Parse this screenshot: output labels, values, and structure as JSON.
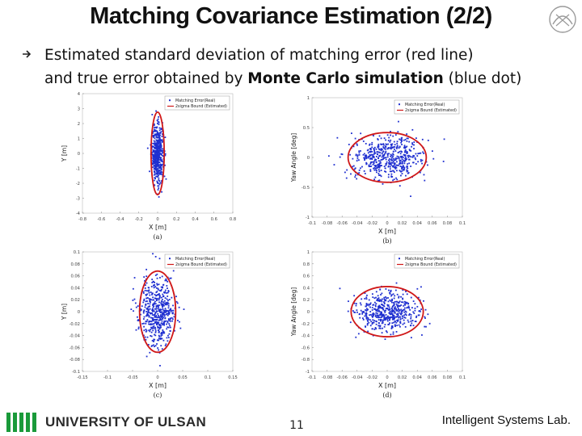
{
  "title": "Matching Covariance Estimation (2/2)",
  "bullet_line1": "Estimated standard deviation of matching error (red line)",
  "bullet_line2_pre": "and true error obtained by ",
  "bullet_line2_bold": "Monte Carlo simulation",
  "bullet_line2_post": " (blue dot)",
  "footer": {
    "university": "UNIVERSITY OF ULSAN",
    "page": "11",
    "lab": "Intelligent Systems Lab."
  },
  "colors": {
    "points": "#1f2fd0",
    "ellipse": "#d01818",
    "logo_green": "#1a9a3a"
  },
  "chart_data": [
    {
      "type": "scatter",
      "panel": "(a)",
      "xlabel": "X [m]",
      "ylabel": "Y [m]",
      "xlim": [
        -0.8,
        0.8
      ],
      "ylim": [
        -4.2,
        4.2
      ],
      "xticks": [
        "-0.8",
        "-0.6",
        "-0.4",
        "-0.2",
        "0",
        "0.2",
        "0.4",
        "0.6",
        "0.8"
      ],
      "yticks": [
        "4",
        "3",
        "2",
        "1",
        "0",
        "-1",
        "-2",
        "-3",
        "-4"
      ],
      "legend": [
        "Matching Error(Real)",
        "2sigma Bound (Estimated)"
      ],
      "legend_position": "top-right",
      "spread": [
        0.03,
        1.0
      ],
      "ellipse": [
        0.07,
        2.9
      ]
    },
    {
      "type": "scatter",
      "panel": "(b)",
      "xlabel": "X [m]",
      "ylabel": "Yaw Angle [deg]",
      "xlim": [
        -0.1,
        0.1
      ],
      "ylim": [
        -1.2,
        1.2
      ],
      "xticks": [
        "-0.1",
        "-0.08",
        "-0.06",
        "-0.04",
        "-0.02",
        "0",
        "0.02",
        "0.04",
        "0.06",
        "0.08",
        "0.1"
      ],
      "yticks": [
        "1",
        "0.5",
        "0",
        "-0.5",
        "-1"
      ],
      "legend": [
        "Matching Error(Real)",
        "2sigma Bound (Estimated)"
      ],
      "legend_position": "top-right",
      "spread": [
        0.025,
        0.22
      ],
      "ellipse": [
        0.052,
        0.5
      ]
    },
    {
      "type": "scatter",
      "panel": "(c)",
      "xlabel": "X [m]",
      "ylabel": "Y [m]",
      "xlim": [
        -0.15,
        0.15
      ],
      "ylim": [
        -0.1,
        0.1
      ],
      "xticks": [
        "-0.15",
        "-0.1",
        "-0.05",
        "0",
        "0.05",
        "0.1",
        "0.15"
      ],
      "yticks": [
        "0.1",
        "0.08",
        "0.06",
        "0.04",
        "0.02",
        "0",
        "-0.02",
        "-0.04",
        "-0.06",
        "-0.08",
        "-0.1"
      ],
      "legend": [
        "Matching Error(Real)",
        "2sigma Bound (Estimated)"
      ],
      "legend_position": "top-right",
      "spread": [
        0.018,
        0.028
      ],
      "ellipse": [
        0.036,
        0.068
      ]
    },
    {
      "type": "scatter",
      "panel": "(d)",
      "xlabel": "X [m]",
      "ylabel": "Yaw Angle [deg]",
      "xlim": [
        -0.1,
        0.1
      ],
      "ylim": [
        -1,
        1
      ],
      "xticks": [
        "-0.1",
        "-0.08",
        "-0.06",
        "-0.04",
        "-0.02",
        "0",
        "0.02",
        "0.04",
        "0.06",
        "0.08",
        "0.1"
      ],
      "yticks": [
        "1",
        "0.8",
        "0.6",
        "0.4",
        "0.2",
        "0",
        "-0.2",
        "-0.4",
        "-0.6",
        "-0.8",
        "-1"
      ],
      "legend": [
        "Matching Error(Real)",
        "2sigma Bound (Estimated)"
      ],
      "legend_position": "top-right",
      "spread": [
        0.022,
        0.18
      ],
      "ellipse": [
        0.048,
        0.42
      ]
    }
  ]
}
